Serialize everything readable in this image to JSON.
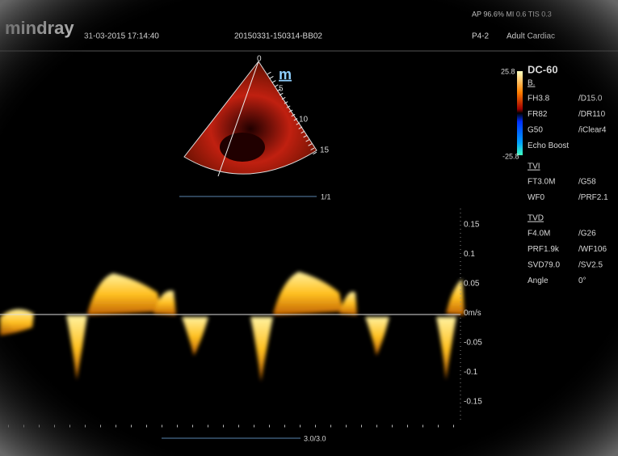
{
  "header": {
    "brand": "mindray",
    "datetime": "31-03-2015 17:14:40",
    "patient_id": "20150331-150314-BB02",
    "probe": "P4-2",
    "preset": "Adult Cardiac",
    "output": "AP 96.6%  MI 0.6  TIS 0.3"
  },
  "sector": {
    "depth_labels": [
      "0",
      "5",
      "10",
      "15"
    ],
    "marker": "m",
    "frame": "1/1"
  },
  "color_bar": {
    "max": "25.8",
    "min": "-25.8"
  },
  "panel": {
    "title": "DC-60",
    "b_mode": {
      "heading": "B.",
      "rows": [
        [
          "FH3.8",
          "/D15.0"
        ],
        [
          "FR82",
          "/DR110"
        ],
        [
          "G50",
          "/iClear4"
        ]
      ],
      "extra": "Echo Boost"
    },
    "tvi": {
      "heading": "TVI",
      "rows": [
        [
          "FT3.0M",
          "/G58"
        ],
        [
          "WF0",
          "/PRF2.1"
        ]
      ]
    },
    "tvd": {
      "heading": "TVD",
      "rows": [
        [
          "F4.0M",
          "/G26"
        ],
        [
          "PRF1.9k",
          "/WF106"
        ],
        [
          "SVD79.0",
          "/SV2.5"
        ],
        [
          "Angle",
          "0°"
        ]
      ]
    }
  },
  "doppler": {
    "scale_labels": [
      "0.15",
      "0.1",
      "0.05",
      "0m/s",
      "-0.05",
      "-0.1",
      "-0.15"
    ],
    "sweep": "3.0/3.0"
  }
}
